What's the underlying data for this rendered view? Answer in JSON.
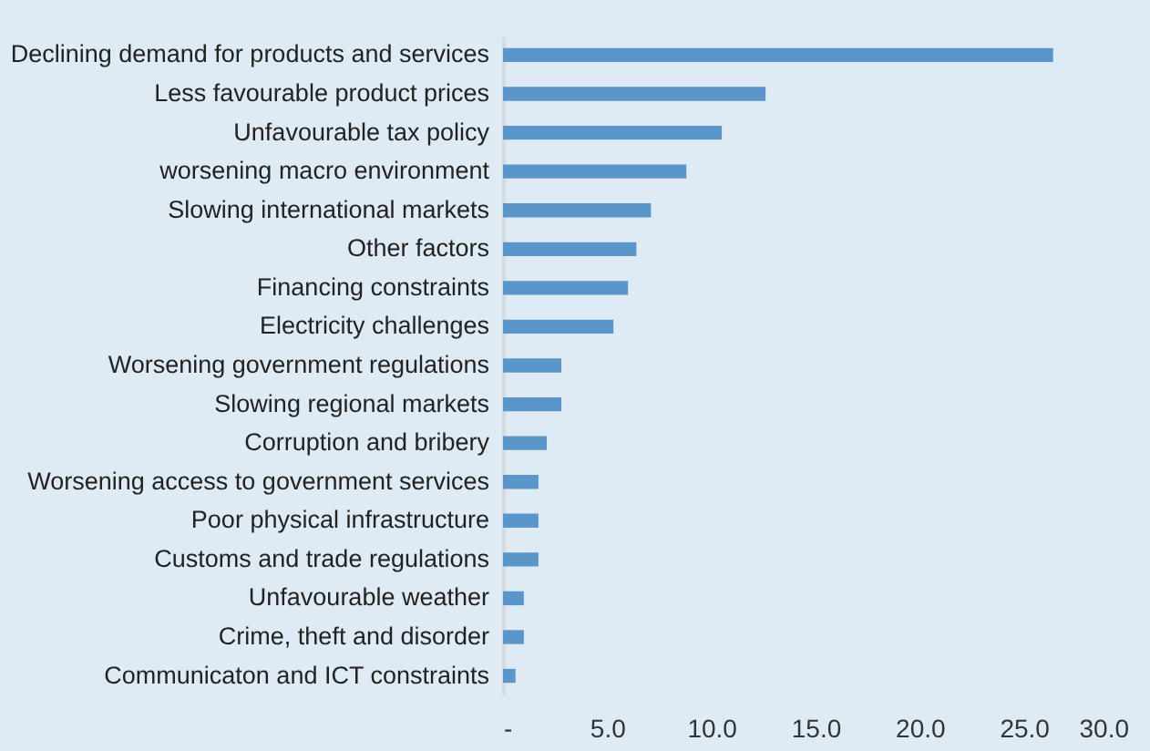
{
  "chart_data": {
    "type": "bar",
    "orientation": "horizontal",
    "categories": [
      "Declining demand for products and services",
      "Less favourable product prices",
      "Unfavourable tax policy",
      "worsening macro environment",
      "Slowing international markets",
      "Other factors",
      "Financing constraints",
      "Electricity challenges",
      "Worsening government regulations",
      "Slowing regional markets",
      "Corruption and bribery",
      "Worsening access to government services",
      "Poor physical infrastructure",
      "Customs and trade regulations",
      "Unfavourable weather",
      "Crime, theft and disorder",
      "Communicaton and ICT constraints"
    ],
    "values": [
      26.4,
      12.6,
      10.5,
      8.8,
      7.1,
      6.4,
      6.0,
      5.3,
      2.8,
      2.8,
      2.1,
      1.7,
      1.7,
      1.7,
      1.0,
      1.0,
      0.6
    ],
    "color": "#5b96cb",
    "xlim": [
      0,
      30
    ],
    "xticks": [
      {
        "value": 0,
        "label": "-"
      },
      {
        "value": 5,
        "label": "5.0"
      },
      {
        "value": 10,
        "label": "10.0"
      },
      {
        "value": 15,
        "label": "15.0"
      },
      {
        "value": 20,
        "label": "20.0"
      },
      {
        "value": 25,
        "label": "25.0"
      },
      {
        "value": 30,
        "label": "30.0"
      }
    ],
    "grid": false
  }
}
